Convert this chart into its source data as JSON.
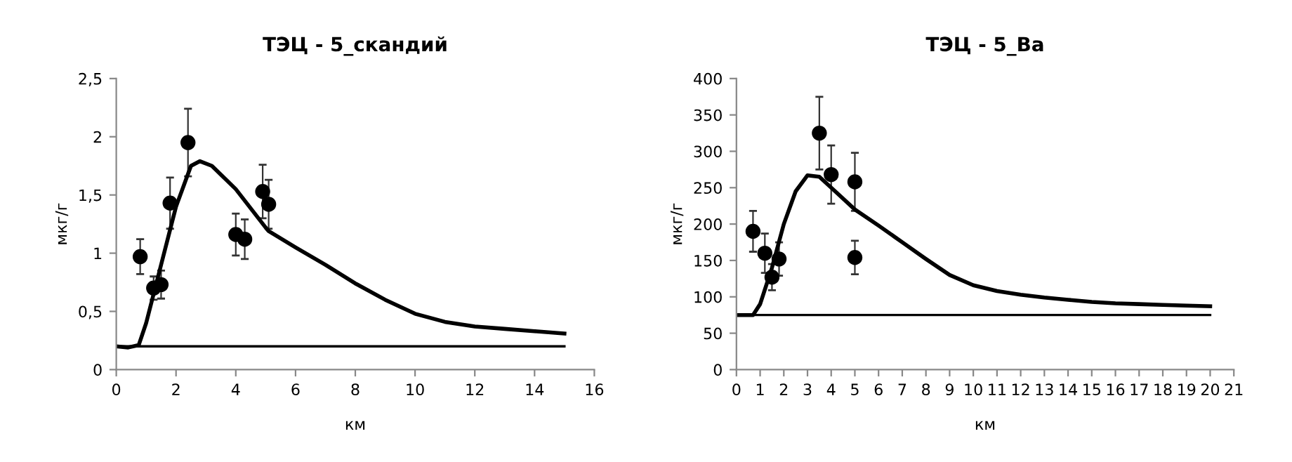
{
  "chart_data": [
    {
      "type": "scatter",
      "title": "ТЭЦ - 5_скандий",
      "xlabel": "км",
      "ylabel": "мкг/г",
      "xlim": [
        0,
        16
      ],
      "xticks": [
        0,
        2,
        4,
        6,
        8,
        10,
        12,
        14,
        16
      ],
      "ylim": [
        0,
        2.5
      ],
      "yticks": [
        {
          "value": 0,
          "label": "0"
        },
        {
          "value": 0.5,
          "label": "0,5"
        },
        {
          "value": 1,
          "label": "1"
        },
        {
          "value": 1.5,
          "label": "1,5"
        },
        {
          "value": 2,
          "label": "2"
        },
        {
          "value": 2.5,
          "label": "2,5"
        }
      ],
      "grid": false,
      "legend": false,
      "series": [
        {
          "marker": "circle",
          "color": "#000000",
          "x": [
            0.8,
            1.25,
            1.5,
            1.8,
            2.4,
            4.0,
            4.3,
            4.9,
            5.1
          ],
          "values": [
            0.97,
            0.7,
            0.73,
            1.43,
            1.95,
            1.16,
            1.12,
            1.53,
            1.42
          ],
          "errors": [
            0.15,
            0.1,
            0.12,
            0.22,
            0.29,
            0.18,
            0.17,
            0.23,
            0.21
          ]
        },
        {
          "type": "line",
          "marker": "none",
          "line_style": "solid",
          "color": "#000000",
          "x": [
            0,
            0.4,
            0.75,
            1,
            1.5,
            2,
            2.5,
            2.8,
            3.2,
            4,
            5,
            5.1,
            6,
            7,
            8,
            9,
            10,
            11,
            12,
            13,
            14,
            15
          ],
          "values": [
            0.2,
            0.19,
            0.21,
            0.4,
            0.9,
            1.4,
            1.75,
            1.79,
            1.75,
            1.55,
            1.22,
            1.19,
            1.05,
            0.9,
            0.74,
            0.6,
            0.48,
            0.41,
            0.37,
            0.35,
            0.33,
            0.31
          ]
        },
        {
          "type": "line",
          "marker": "none",
          "line_style": "solid",
          "color": "#000000",
          "x": [
            0,
            15
          ],
          "values": [
            0.2,
            0.2
          ]
        }
      ]
    },
    {
      "type": "scatter",
      "title": "ТЭЦ - 5_Ba",
      "xlabel": "км",
      "ylabel": "мкг/г",
      "xlim": [
        0,
        21
      ],
      "xticks": [
        0,
        1,
        2,
        3,
        4,
        5,
        6,
        7,
        8,
        9,
        10,
        11,
        12,
        13,
        14,
        15,
        16,
        17,
        18,
        19,
        20,
        21
      ],
      "ylim": [
        0,
        400
      ],
      "yticks": [
        0,
        50,
        100,
        150,
        200,
        250,
        300,
        350,
        400
      ],
      "grid": false,
      "legend": false,
      "series": [
        {
          "marker": "circle",
          "color": "#000000",
          "x": [
            0.7,
            1.2,
            1.5,
            1.8,
            3.5,
            4.0,
            5.0,
            5.0
          ],
          "values": [
            190,
            160,
            127,
            152,
            325,
            268,
            258,
            154
          ],
          "errors": [
            28,
            27,
            18,
            23,
            50,
            40,
            40,
            23
          ]
        },
        {
          "type": "line",
          "marker": "none",
          "line_style": "solid",
          "color": "#000000",
          "x": [
            0,
            0.7,
            1,
            1.5,
            2,
            2.5,
            3,
            3.5,
            4,
            5,
            6,
            7,
            8,
            9,
            10,
            11,
            12,
            13,
            14,
            15,
            16,
            17,
            18,
            19,
            20
          ],
          "values": [
            75,
            75,
            90,
            140,
            200,
            245,
            267,
            265,
            250,
            220,
            198,
            175,
            152,
            130,
            116,
            108,
            103,
            99,
            96,
            93,
            91,
            90,
            89,
            88,
            87
          ]
        },
        {
          "type": "line",
          "marker": "none",
          "line_style": "solid",
          "color": "#000000",
          "x": [
            0,
            20
          ],
          "values": [
            75,
            75
          ]
        }
      ]
    }
  ]
}
